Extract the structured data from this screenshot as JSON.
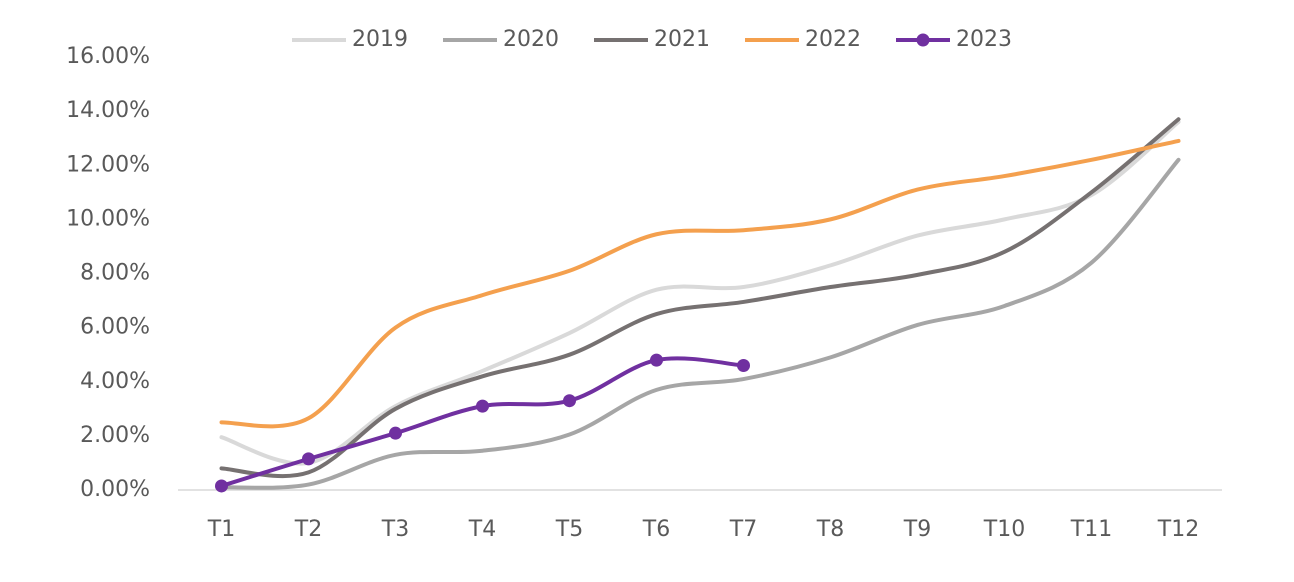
{
  "chart_data": {
    "type": "line",
    "smooth": true,
    "legend": "top",
    "categories": [
      "T1",
      "T2",
      "T3",
      "T4",
      "T5",
      "T6",
      "T7",
      "T8",
      "T9",
      "T10",
      "T11",
      "T12"
    ],
    "series": [
      {
        "name": "2019",
        "color": "#d9d9d9",
        "values": [
          1.95,
          1.0,
          3.1,
          4.4,
          5.8,
          7.4,
          7.5,
          8.3,
          9.4,
          10.0,
          10.9,
          13.6
        ]
      },
      {
        "name": "2020",
        "color": "#a6a6a6",
        "values": [
          0.1,
          0.2,
          1.3,
          1.45,
          2.05,
          3.7,
          4.1,
          4.9,
          6.1,
          6.8,
          8.4,
          12.2
        ]
      },
      {
        "name": "2021",
        "color": "#767171",
        "values": [
          0.8,
          0.65,
          3.0,
          4.2,
          5.0,
          6.5,
          6.95,
          7.5,
          7.95,
          8.8,
          11.0,
          13.7
        ]
      },
      {
        "name": "2022",
        "color": "#f4a04e",
        "values": [
          2.5,
          2.65,
          6.0,
          7.2,
          8.1,
          9.45,
          9.6,
          10.0,
          11.1,
          11.6,
          12.2,
          12.9
        ]
      },
      {
        "name": "2023",
        "color": "#7030a0",
        "markers": true,
        "values": [
          0.15,
          1.15,
          2.1,
          3.1,
          3.3,
          4.8,
          4.6,
          null,
          null,
          null,
          null,
          null
        ]
      }
    ],
    "ylim": [
      0,
      16
    ],
    "yticks": [
      {
        "value": 0,
        "label": "0.00%"
      },
      {
        "value": 2,
        "label": "2.00%"
      },
      {
        "value": 4,
        "label": "4.00%"
      },
      {
        "value": 6,
        "label": "6.00%"
      },
      {
        "value": 8,
        "label": "8.00%"
      },
      {
        "value": 10,
        "label": "10.00%"
      },
      {
        "value": 12,
        "label": "12.00%"
      },
      {
        "value": 14,
        "label": "14.00%"
      },
      {
        "value": 16,
        "label": "16.00%"
      }
    ],
    "grid": false
  }
}
